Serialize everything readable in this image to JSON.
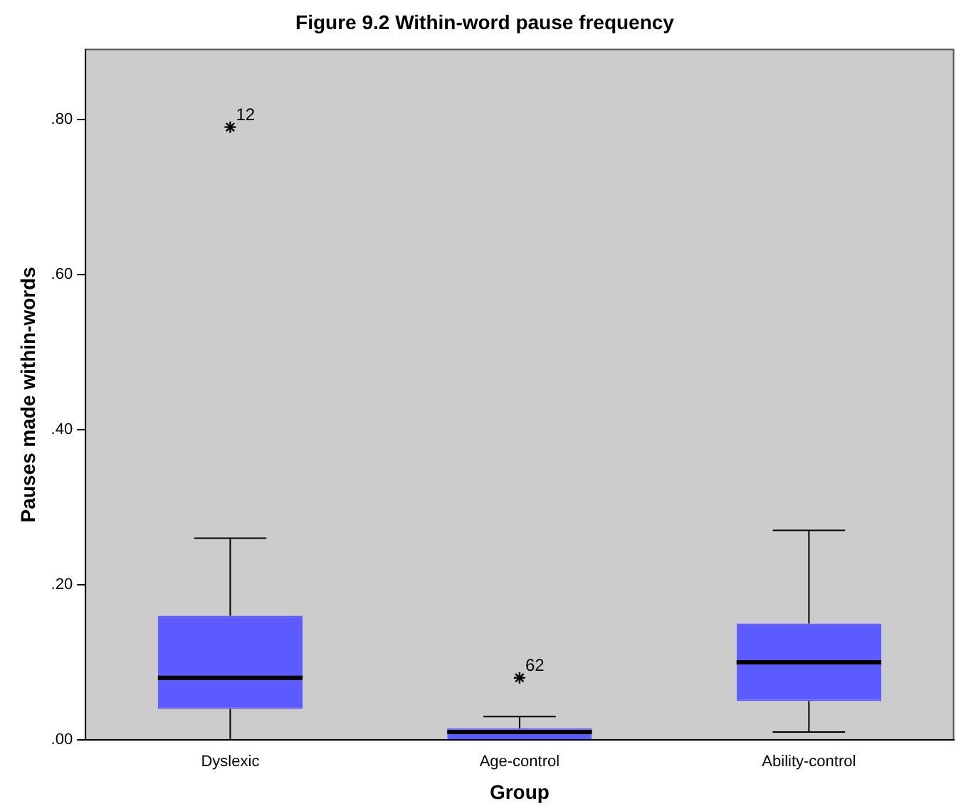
{
  "chart_data": {
    "type": "box",
    "title": "Figure 9.2 Within-word pause frequency",
    "xlabel": "Group",
    "ylabel": "Pauses made within-words",
    "categories": [
      "Dyslexic",
      "Age-control",
      "Ability-control"
    ],
    "series": [
      {
        "color": "#5b5bff",
        "boxes": [
          {
            "low": 0,
            "q1": 0.04,
            "median": 0.08,
            "q3": 0.16,
            "high": 0.26,
            "outliers": [
              0.79
            ]
          },
          {
            "low": 0,
            "q1": 0,
            "median": 0.01,
            "q3": 0.015,
            "high": 0.03,
            "outliers": [
              0.08
            ]
          },
          {
            "low": 0.01,
            "q1": 0.05,
            "median": 0.1,
            "q3": 0.15,
            "high": 0.27
          }
        ]
      }
    ],
    "ylim": [
      0,
      0.89
    ],
    "yticks": [
      {
        "value": 0,
        "label": ".00"
      },
      {
        "value": 0.2,
        "label": ".20"
      },
      {
        "value": 0.4,
        "label": ".40"
      },
      {
        "value": 0.6,
        "label": ".60"
      },
      {
        "value": 0.8,
        "label": ".80"
      }
    ],
    "annotations": [
      "12",
      "62"
    ],
    "marker": "star",
    "grid": false,
    "legend": false
  }
}
